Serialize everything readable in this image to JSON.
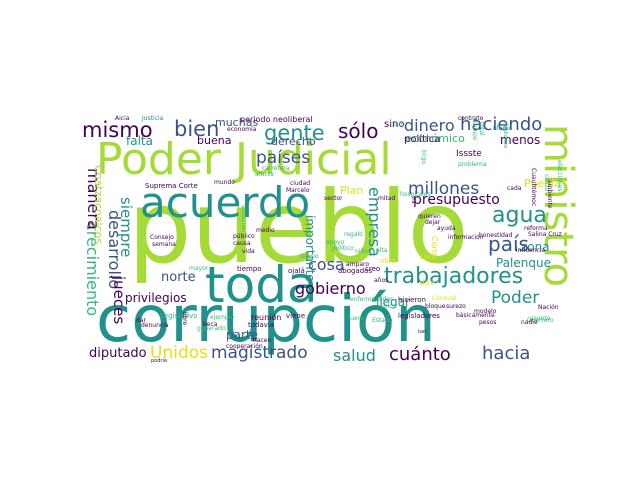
{
  "palette": {
    "lime": "#a5db36",
    "teal": "#21918c",
    "green": "#35b779",
    "navy": "#3b528b",
    "purple": "#440154",
    "blue": "#31688e",
    "yellow": "#dde318"
  },
  "words": [
    {
      "id": "pueblo",
      "text": "pueblo",
      "color": "lime"
    },
    {
      "id": "corrupcion",
      "text": "corrupción",
      "color": "teal"
    },
    {
      "id": "poder-judicial",
      "text": "Poder Judicial",
      "color": "lime"
    },
    {
      "id": "toda",
      "text": "toda",
      "color": "teal"
    },
    {
      "id": "acuerdo",
      "text": "acuerdo",
      "color": "teal"
    },
    {
      "id": "ministro",
      "text": "ministro",
      "color": "lime"
    },
    {
      "id": "trabajadores",
      "text": "trabajadores",
      "color": "teal"
    },
    {
      "id": "gente",
      "text": "gente",
      "color": "teal"
    },
    {
      "id": "mismo",
      "text": "mismo",
      "color": "purple"
    },
    {
      "id": "bien",
      "text": "bien",
      "color": "navy"
    },
    {
      "id": "solo",
      "text": "sólo",
      "color": "purple"
    },
    {
      "id": "dinero",
      "text": "dinero",
      "color": "navy"
    },
    {
      "id": "haciendo",
      "text": "haciendo",
      "color": "navy"
    },
    {
      "id": "paises",
      "text": "países",
      "color": "navy"
    },
    {
      "id": "millones",
      "text": "millones",
      "color": "navy"
    },
    {
      "id": "agua",
      "text": "agua",
      "color": "teal"
    },
    {
      "id": "pais",
      "text": "país",
      "color": "navy"
    },
    {
      "id": "presupuesto",
      "text": "presupuesto",
      "color": "purple"
    },
    {
      "id": "empresa",
      "text": "empresa",
      "color": "teal"
    },
    {
      "id": "cosa",
      "text": "cosa",
      "color": "navy"
    },
    {
      "id": "gobierno",
      "text": "gobierno",
      "color": "purple"
    },
    {
      "id": "poder",
      "text": "Poder",
      "color": "teal"
    },
    {
      "id": "cuanto",
      "text": "cuánto",
      "color": "purple"
    },
    {
      "id": "hacia",
      "text": "hacia",
      "color": "navy"
    },
    {
      "id": "unidos",
      "text": "Unidos",
      "color": "yellow"
    },
    {
      "id": "magistrado",
      "text": "magistrado",
      "color": "navy"
    },
    {
      "id": "salud",
      "text": "salud",
      "color": "teal"
    },
    {
      "id": "diputado",
      "text": "diputado",
      "color": "purple"
    },
    {
      "id": "crecimiento",
      "text": "crecimiento",
      "color": "green"
    },
    {
      "id": "manera",
      "text": "manera",
      "color": "purple"
    },
    {
      "id": "desarrollo",
      "text": "desarrollo",
      "color": "navy"
    },
    {
      "id": "jueces",
      "text": "jueces",
      "color": "purple"
    },
    {
      "id": "siempre",
      "text": "siempre",
      "color": "teal"
    },
    {
      "id": "privilegios",
      "text": "privilegios",
      "color": "purple"
    },
    {
      "id": "norte",
      "text": "norte",
      "color": "navy"
    },
    {
      "id": "falta",
      "text": "falta",
      "color": "teal"
    },
    {
      "id": "buena",
      "text": "buena",
      "color": "purple"
    },
    {
      "id": "muchas",
      "text": "muchas",
      "color": "navy"
    },
    {
      "id": "palenque",
      "text": "Palenque",
      "color": "teal"
    },
    {
      "id": "puebla",
      "text": "Puebla",
      "color": "yellow"
    },
    {
      "id": "zona",
      "text": "zona",
      "color": "teal"
    },
    {
      "id": "llegar",
      "text": "llegar",
      "color": "teal"
    },
    {
      "id": "economico",
      "text": "económico",
      "color": "green"
    },
    {
      "id": "menos",
      "text": "menos",
      "color": "purple"
    },
    {
      "id": "politica",
      "text": "política",
      "color": "purple"
    },
    {
      "id": "derecho",
      "text": "derecho",
      "color": "navy"
    },
    {
      "id": "parte",
      "text": "parte",
      "color": "navy"
    },
    {
      "id": "importante",
      "text": "importante",
      "color": "teal"
    },
    {
      "id": "plan",
      "text": "Plan",
      "color": "yellow"
    },
    {
      "id": "sino",
      "text": "sino",
      "color": "purple"
    },
    {
      "id": "periodo-neoliberal",
      "text": "periodo neoliberal",
      "color": "purple"
    },
    {
      "id": "suprema-corte",
      "text": "Suprema Corte",
      "color": "purple"
    },
    {
      "id": "issste",
      "text": "Issste",
      "color": "purple"
    },
    {
      "id": "coatzacoalcos",
      "text": "Coatzacoalcos",
      "color": "lime"
    },
    {
      "id": "justicia",
      "text": "Justicia",
      "color": "teal"
    },
    {
      "id": "aicia",
      "text": "Aicia",
      "color": "purple"
    },
    {
      "id": "economia",
      "text": "economía",
      "color": "purple"
    },
    {
      "id": "contrato",
      "text": "contrato",
      "color": "purple"
    },
    {
      "id": "ultimo",
      "text": "último",
      "color": "teal"
    },
    {
      "id": "legislativo",
      "text": "Legislativo",
      "color": "green"
    },
    {
      "id": "reunion",
      "text": "reunión",
      "color": "purple"
    },
    {
      "id": "todavia",
      "text": "todavía",
      "color": "purple"
    },
    {
      "id": "legisladores",
      "text": "legisladores",
      "color": "purple"
    },
    {
      "id": "consejo",
      "text": "Consejo",
      "color": "purple"
    },
    {
      "id": "semana",
      "text": "semana",
      "color": "purple"
    },
    {
      "id": "tiempo",
      "text": "tiempo",
      "color": "purple"
    },
    {
      "id": "ojala",
      "text": "ojalá",
      "color": "purple"
    },
    {
      "id": "abogados",
      "text": "abogados",
      "color": "purple"
    },
    {
      "id": "creo",
      "text": "creo",
      "color": "purple"
    },
    {
      "id": "hicieron",
      "text": "hicieron",
      "color": "purple"
    },
    {
      "id": "nacion",
      "text": "Nación",
      "color": "purple"
    },
    {
      "id": "asunto",
      "text": "asunto",
      "color": "green"
    },
    {
      "id": "pesos",
      "text": "pesos",
      "color": "purple"
    },
    {
      "id": "hacen",
      "text": "hacen",
      "color": "purple"
    },
    {
      "id": "viene",
      "text": "viene",
      "color": "purple"
    },
    {
      "id": "beca",
      "text": "beca",
      "color": "purple"
    },
    {
      "id": "mayor",
      "text": "mayor",
      "color": "green"
    },
    {
      "id": "medio",
      "text": "medio",
      "color": "purple"
    },
    {
      "id": "publico",
      "text": "público",
      "color": "purple"
    },
    {
      "id": "causa",
      "text": "causa",
      "color": "purple"
    },
    {
      "id": "vida",
      "text": "vida",
      "color": "purple"
    },
    {
      "id": "ciudad",
      "text": "ciudad",
      "color": "purple"
    },
    {
      "id": "sector",
      "text": "sector",
      "color": "purple"
    },
    {
      "id": "informacion",
      "text": "información",
      "color": "purple"
    },
    {
      "id": "honestidad",
      "text": "honestidad",
      "color": "purple"
    },
    {
      "id": "influencia",
      "text": "influencia",
      "color": "purple"
    },
    {
      "id": "ayuda",
      "text": "ayuda",
      "color": "purple"
    },
    {
      "id": "reforma",
      "text": "reforma",
      "color": "purple"
    },
    {
      "id": "salina-cruz",
      "text": "Salina Cruz",
      "color": "purple"
    },
    {
      "id": "cada",
      "text": "cada",
      "color": "purple"
    },
    {
      "id": "quieren",
      "text": "quieren",
      "color": "purple"
    },
    {
      "id": "dejar",
      "text": "dejar",
      "color": "purple"
    },
    {
      "id": "modelo",
      "text": "modelo",
      "color": "purple"
    },
    {
      "id": "guerrero",
      "text": "Guerrero",
      "color": "green"
    },
    {
      "id": "denuncia",
      "text": "denuncia",
      "color": "purple"
    },
    {
      "id": "libre",
      "text": "libre",
      "color": "purple"
    },
    {
      "id": "cooperacion",
      "text": "cooperación",
      "color": "purple"
    },
    {
      "id": "podria",
      "text": "podría",
      "color": "purple"
    },
    {
      "id": "mitad",
      "text": "mitad",
      "color": "purple"
    },
    {
      "id": "problema",
      "text": "problema",
      "color": "green"
    },
    {
      "id": "nadie",
      "text": "nadie",
      "color": "purple"
    },
    {
      "id": "bloque",
      "text": "bloque",
      "color": "purple"
    },
    {
      "id": "basicamente",
      "text": "básicamente",
      "color": "purple"
    },
    {
      "id": "marcelo",
      "text": "Marcelo",
      "color": "purple"
    },
    {
      "id": "mundo",
      "text": "mundo",
      "color": "purple"
    },
    {
      "id": "carretera",
      "text": "carretera",
      "color": "green"
    },
    {
      "id": "afecta",
      "text": "afecta",
      "color": "green"
    },
    {
      "id": "amparo",
      "text": "amparo",
      "color": "purple"
    },
    {
      "id": "anos",
      "text": "años",
      "color": "purple"
    },
    {
      "id": "enfermedades",
      "text": "enfermedades",
      "color": "green"
    },
    {
      "id": "hospitales",
      "text": "hospitales",
      "color": "green"
    },
    {
      "id": "ejemplo",
      "text": "ejemplo",
      "color": "green"
    },
    {
      "id": "grupo",
      "text": "Grupo",
      "color": "green"
    },
    {
      "id": "politico",
      "text": "político",
      "color": "green"
    },
    {
      "id": "ninos",
      "text": "niños",
      "color": "green"
    },
    {
      "id": "regalo",
      "text": "regalo",
      "color": "green"
    },
    {
      "id": "coneval",
      "text": "Coneval",
      "color": "yellow"
    },
    {
      "id": "generado",
      "text": "generado",
      "color": "green"
    },
    {
      "id": "surezo",
      "text": "surezo",
      "color": "purple"
    },
    {
      "id": "dar",
      "text": "dar",
      "color": "purple"
    },
    {
      "id": "tan",
      "text": "tan",
      "color": "purple"
    },
    {
      "id": "via",
      "text": "vía",
      "color": "purple"
    },
    {
      "id": "situacion",
      "text": "situación",
      "color": "green"
    },
    {
      "id": "candidatos",
      "text": "candidatos",
      "color": "green"
    },
    {
      "id": "cierto",
      "text": "cierto",
      "color": "green"
    },
    {
      "id": "elecciones",
      "text": "elecciones",
      "color": "green"
    },
    {
      "id": "cuauhtemoc",
      "text": "Cuauhtémoc",
      "color": "purple"
    },
    {
      "id": "ambiente",
      "text": "ambiente",
      "color": "purple"
    },
    {
      "id": "tuvimos",
      "text": "tuvimos",
      "color": "green"
    },
    {
      "id": "total",
      "text": "total",
      "color": "green"
    },
    {
      "id": "corte",
      "text": "Corte",
      "color": "yellow"
    },
    {
      "id": "caso",
      "text": "caso",
      "color": "yellow"
    },
    {
      "id": "obra",
      "text": "obra",
      "color": "yellow"
    },
    {
      "id": "dice",
      "text": "dice",
      "color": "yellow"
    },
    {
      "id": "alta",
      "text": "alta",
      "color": "green"
    },
    {
      "id": "unico",
      "text": "único",
      "color": "green"
    },
    {
      "id": "estado",
      "text": "Estado",
      "color": "green"
    },
    {
      "id": "fuera",
      "text": "fuera",
      "color": "green"
    },
    {
      "id": "apoyo",
      "text": "apoyo",
      "color": "green"
    },
    {
      "id": "trigo",
      "text": "trigo",
      "color": "green"
    },
    {
      "id": "claro",
      "text": "claro",
      "color": "green"
    }
  ]
}
